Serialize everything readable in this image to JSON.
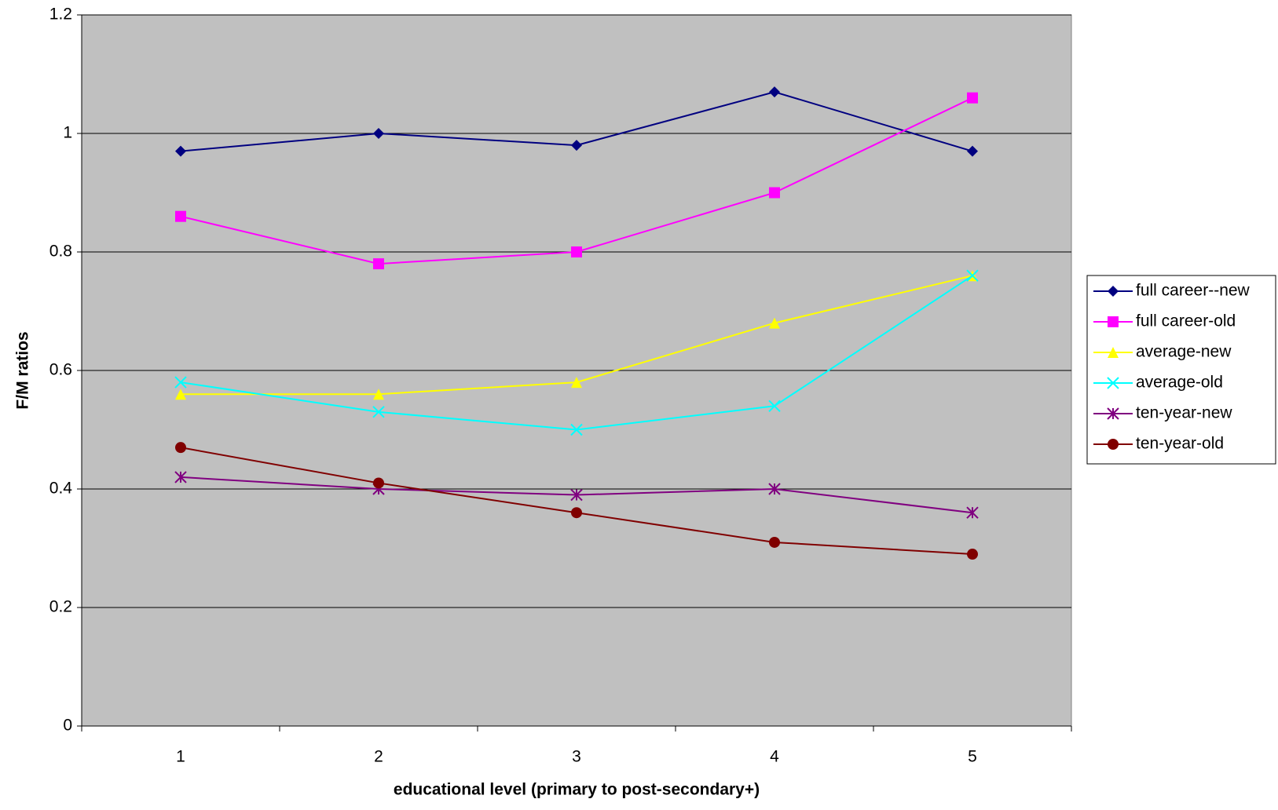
{
  "chart_data": {
    "type": "line",
    "x_label": "educational level (primary to post-secondary+)",
    "y_label": "F/M ratios",
    "categories": [
      "1",
      "2",
      "3",
      "4",
      "5"
    ],
    "ylim": [
      0,
      1.2
    ],
    "yticks": [
      0,
      0.2,
      0.4,
      0.6,
      0.8,
      1,
      1.2
    ],
    "grid": true,
    "legend": "right",
    "series": [
      {
        "name": "full career--new",
        "color": "#000080",
        "marker": "diamond",
        "values": [
          0.97,
          1.0,
          0.98,
          1.07,
          0.97
        ]
      },
      {
        "name": "full career-old",
        "color": "#FF00FF",
        "marker": "square",
        "values": [
          0.86,
          0.78,
          0.8,
          0.9,
          1.06
        ]
      },
      {
        "name": "average-new",
        "color": "#FFFF00",
        "marker": "triangle",
        "values": [
          0.56,
          0.56,
          0.58,
          0.68,
          0.76
        ]
      },
      {
        "name": "average-old",
        "color": "#00FFFF",
        "marker": "x",
        "values": [
          0.58,
          0.53,
          0.5,
          0.54,
          0.76
        ]
      },
      {
        "name": "ten-year-new",
        "color": "#800080",
        "marker": "star",
        "values": [
          0.42,
          0.4,
          0.39,
          0.4,
          0.36
        ]
      },
      {
        "name": "ten-year-old",
        "color": "#800000",
        "marker": "circle",
        "values": [
          0.47,
          0.41,
          0.36,
          0.31,
          0.29
        ]
      }
    ]
  }
}
